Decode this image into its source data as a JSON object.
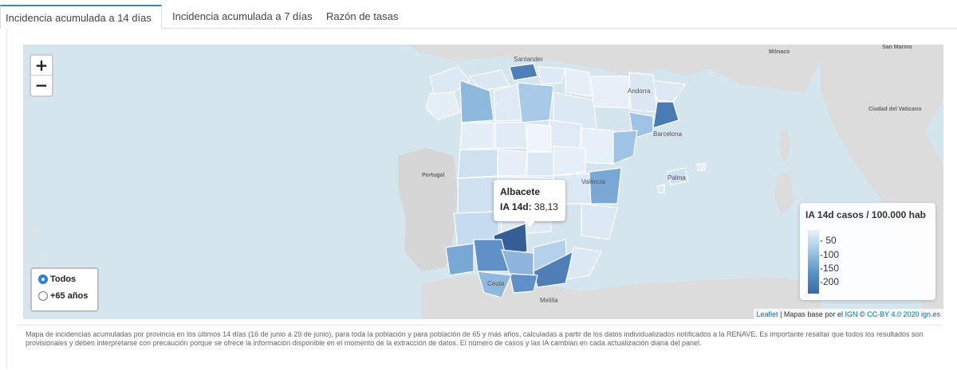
{
  "tabs": [
    {
      "label": "Incidencia acumulada a 14 días",
      "active": true
    },
    {
      "label": "Incidencia acumulada a 7 días",
      "active": false
    },
    {
      "label": "Razón de tasas",
      "active": false
    }
  ],
  "zoom": {
    "in": "+",
    "out": "−"
  },
  "population_filter": {
    "options": [
      {
        "label": "Todos",
        "checked": true
      },
      {
        "label": "+65 años",
        "checked": false
      }
    ]
  },
  "map_labels": {
    "monaco": "Mónaco",
    "san_marino": "San Marino",
    "vaticano": "Ciudad del Vaticano",
    "portugal": "Portugal",
    "santander": "Santander",
    "andorra": "Andorra",
    "barcelona": "Barcelona",
    "valencia": "València",
    "palma": "Palma",
    "ceuta": "Ceuta",
    "melilla": "Melilla"
  },
  "tooltip": {
    "province": "Albacete",
    "metric_label": "IA 14d:",
    "value": "38,13"
  },
  "legend": {
    "title": "IA 14d casos / 100.000 hab",
    "ticks": [
      "50",
      "100",
      "150",
      "200"
    ]
  },
  "attribution": {
    "leaflet": "Leaflet",
    "sep": " | Mapas base por el ",
    "ign": "IGN",
    "copy": " © ",
    "license": "CC-BY 4.0 2020 ign.es"
  },
  "caption": "Mapa de incidencias acumuladas por provincia en los últimos 14 días (16 de junio a 29 de junio), para toda la población y para población de 65 y más años, calculadas a partir de los datos individualizados notificados a la RENAVE. Es importante resaltar que todos los resultados son provisionales y deben interpretarse con precaución porque se ofrece la información disponible en el momento de la extracción de datos. El número de casos y las IA cambian en cada actualización diaria del panel.",
  "colors": {
    "sea": "#d4e5ed",
    "land": "#d9d9d9",
    "low": "#dde9f5",
    "mid": "#8fb8de",
    "high": "#4f7fb6",
    "max": "#355e96",
    "accent": "#3a87c6"
  }
}
